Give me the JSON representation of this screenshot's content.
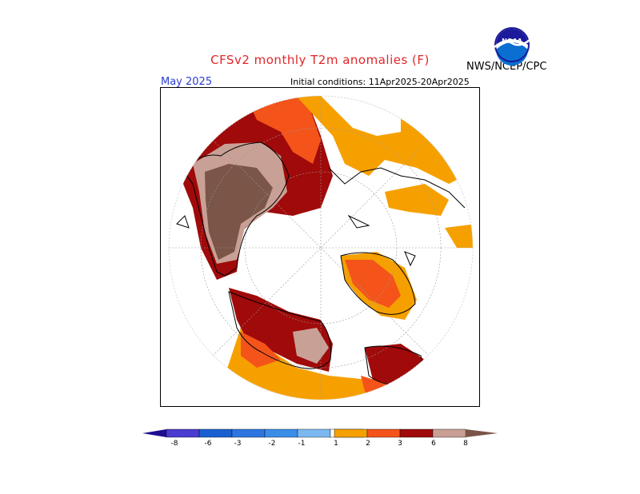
{
  "header": {
    "title": "CFSv2 monthly T2m anomalies (F)",
    "org": "NWS/NCEP/CPC",
    "logo": "NOAA",
    "month": "May 2025",
    "initial_conditions": "Initial conditions: 11Apr2025-20Apr2025"
  },
  "legend": {
    "labels": [
      "-8",
      "-6",
      "-3",
      "-2",
      "-1",
      "1",
      "2",
      "3",
      "6",
      "8"
    ],
    "colors": [
      "#1d0f8f",
      "#4a3cd0",
      "#1a5fd0",
      "#3a8ee8",
      "#7cb8f0",
      "#ffffff",
      "#f6a000",
      "#f4541a",
      "#d62500",
      "#a00a0a",
      "#c9a095",
      "#7a5548"
    ]
  },
  "colors": {
    "title": "#e2262a",
    "month": "#2a3fd0",
    "anomaly_1_2": "#f6a000",
    "anomaly_2_3": "#f4541a",
    "anomaly_3_6": "#a00a0a",
    "anomaly_6_8": "#c9a095",
    "anomaly_gt_8": "#7a5548"
  }
}
